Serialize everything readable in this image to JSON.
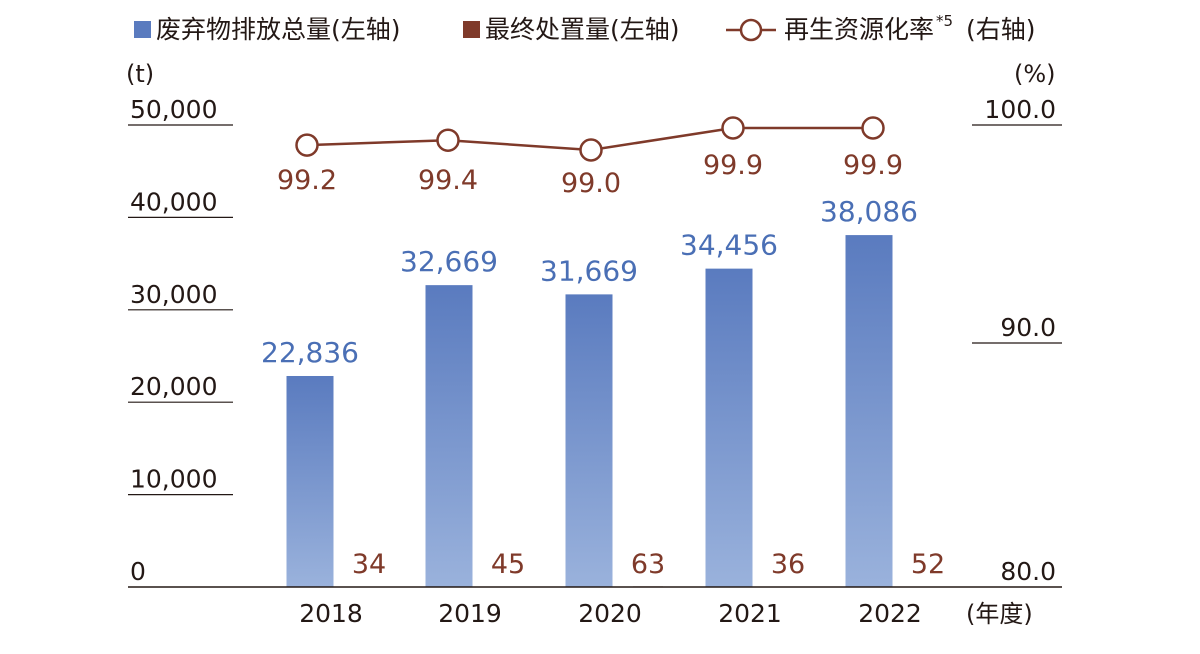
{
  "legend": {
    "total": "废弃物排放总量(左轴)",
    "final": "最终处置量(左轴)",
    "rate": "再生资源化率",
    "rate_mark": "*5",
    "rate_axis": "(右轴)"
  },
  "left_axis_unit": "(t)",
  "right_axis_unit": "(%)",
  "x_axis_unit": "(年度)",
  "colors": {
    "total_bar_top": "#5a7bbf",
    "total_bar_bottom": "#9ab2dc",
    "total_label": "#4a6fb5",
    "final": "#7f3a2a",
    "rate_line": "#7f3a2a",
    "axis": "#231815"
  },
  "chart_data": {
    "type": "bar",
    "categories": [
      "2018",
      "2019",
      "2020",
      "2021",
      "2022"
    ],
    "series": [
      {
        "name": "废弃物排放总量",
        "axis": "left",
        "type": "bar",
        "values": [
          22836,
          32669,
          31669,
          34456,
          38086
        ],
        "labels": [
          "22,836",
          "32,669",
          "31,669",
          "34,456",
          "38,086"
        ]
      },
      {
        "name": "最终处置量",
        "axis": "left",
        "type": "bar",
        "values": [
          34,
          45,
          63,
          36,
          52
        ],
        "labels": [
          "34",
          "45",
          "63",
          "36",
          "52"
        ]
      },
      {
        "name": "再生资源化率",
        "axis": "right",
        "type": "line",
        "values": [
          99.2,
          99.4,
          99.0,
          99.9,
          99.9
        ],
        "labels": [
          "99.2",
          "99.4",
          "99.0",
          "99.9",
          "99.9"
        ]
      }
    ],
    "left_axis": {
      "ylim": [
        0,
        50000
      ],
      "ticks": [
        0,
        10000,
        20000,
        30000,
        40000,
        50000
      ],
      "tick_labels": [
        "0",
        "10,000",
        "20,000",
        "30,000",
        "40,000",
        "50,000"
      ]
    },
    "right_axis": {
      "ylim": [
        80,
        100
      ],
      "tick_labels_shown": [
        "80.0",
        "90.0",
        "100.0"
      ],
      "note": "axis is broken between 90.0 and 100.0"
    },
    "legend_position": "top",
    "grid": false
  }
}
